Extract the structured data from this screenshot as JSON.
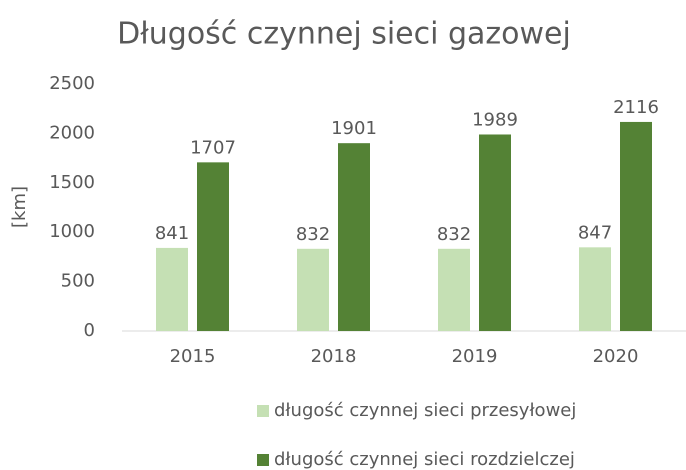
{
  "chart_data": {
    "type": "bar",
    "title": "Długość czynnej sieci gazowej",
    "y_label": "[km]",
    "categories": [
      "2015",
      "2018",
      "2019",
      "2020"
    ],
    "series": [
      {
        "name": "długość czynnej sieci przesyłowej",
        "color": "#c5e0b4",
        "values": [
          841,
          832,
          832,
          847
        ]
      },
      {
        "name": "długość czynnej sieci rozdzielczej",
        "color": "#548235",
        "values": [
          1707,
          1901,
          1989,
          2116
        ]
      }
    ],
    "ylim": [
      0,
      2500
    ],
    "yticks": [
      0,
      500,
      1000,
      1500,
      2000,
      2500
    ],
    "grid": false,
    "legend": "bottom"
  }
}
